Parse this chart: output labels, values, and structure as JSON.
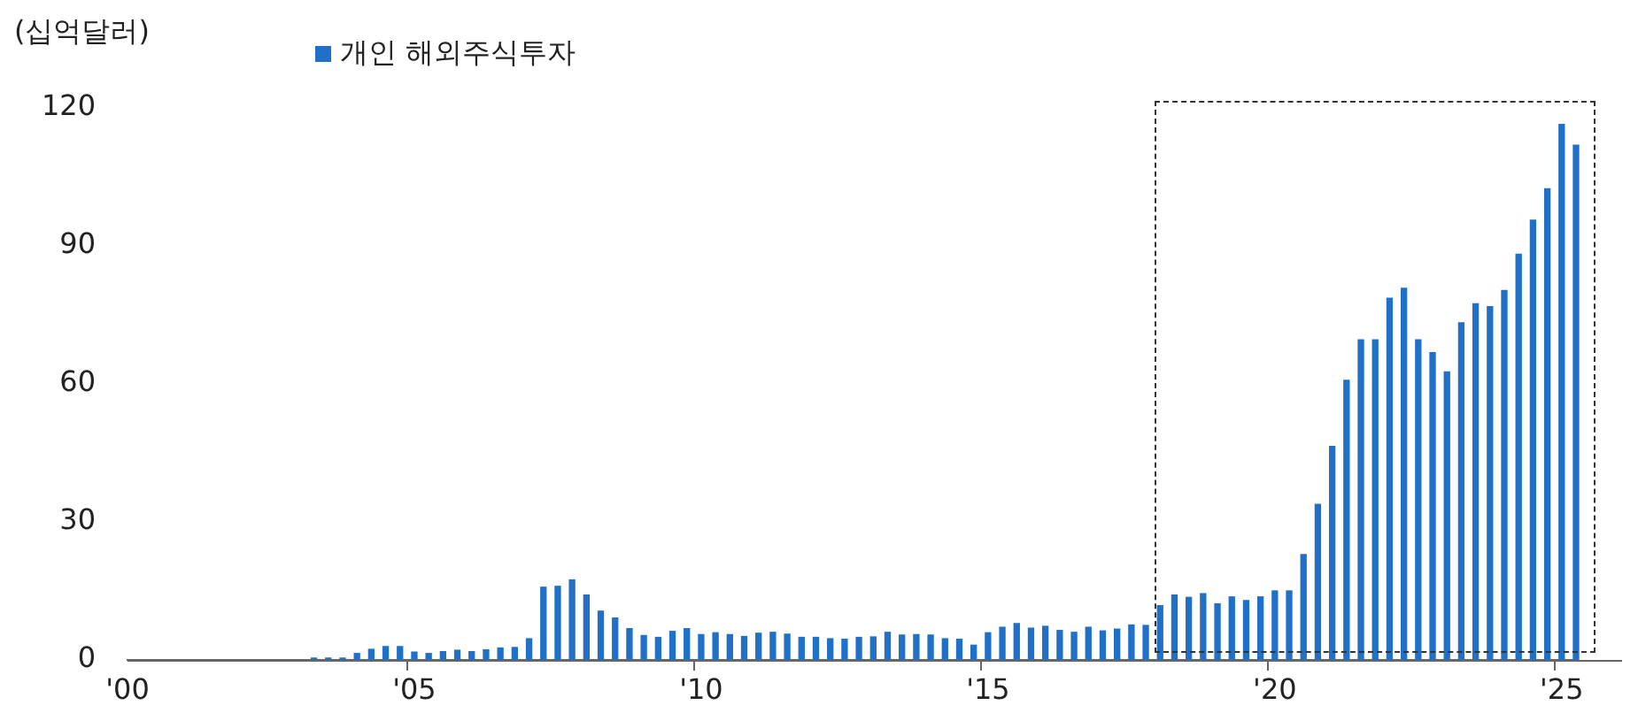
{
  "chart_data": {
    "type": "bar",
    "ylabel": "(십억달러)",
    "legend": "top left",
    "categories": [
      "'00",
      null,
      null,
      null,
      null,
      null,
      null,
      null,
      null,
      null,
      null,
      null,
      null,
      null,
      null,
      null,
      null,
      null,
      null,
      null,
      "'05",
      null,
      null,
      null,
      null,
      null,
      null,
      null,
      null,
      null,
      null,
      null,
      null,
      null,
      null,
      null,
      null,
      null,
      null,
      null,
      "'10",
      null,
      null,
      null,
      null,
      null,
      null,
      null,
      null,
      null,
      null,
      null,
      null,
      null,
      null,
      null,
      null,
      null,
      null,
      null,
      "'15",
      null,
      null,
      null,
      null,
      null,
      null,
      null,
      null,
      null,
      null,
      null,
      null,
      null,
      null,
      null,
      null,
      null,
      null,
      null,
      "'20",
      null,
      null,
      null,
      null,
      null,
      null,
      null,
      null,
      null,
      null,
      null,
      null,
      null,
      null,
      null,
      null,
      null,
      null,
      null,
      "'25",
      null
    ],
    "series": [
      {
        "name": "개인 해외주식투자",
        "color": "#1f70c6",
        "values": [
          null,
          null,
          null,
          null,
          null,
          null,
          null,
          null,
          null,
          null,
          null,
          null,
          null,
          0.4,
          0.4,
          0.4,
          1.4,
          2.3,
          2.9,
          2.9,
          1.7,
          1.4,
          1.8,
          2.1,
          1.8,
          2.2,
          2.6,
          2.7,
          4.6,
          15.8,
          16.0,
          17.4,
          14.1,
          10.6,
          9.1,
          6.8,
          5.3,
          4.9,
          6.2,
          6.8,
          5.5,
          5.9,
          5.5,
          5.1,
          5.8,
          6.0,
          5.6,
          4.9,
          4.9,
          4.6,
          4.5,
          4.9,
          5.0,
          6.0,
          5.4,
          5.5,
          5.4,
          4.6,
          4.5,
          3.2,
          5.9,
          7.1,
          7.9,
          6.9,
          7.3,
          6.4,
          6.0,
          7.1,
          6.3,
          6.7,
          7.6,
          7.5,
          11.8,
          14.1,
          13.6,
          14.4,
          12.2,
          13.7,
          12.9,
          13.7,
          15.0,
          15.0,
          22.9,
          33.8,
          46.4,
          60.8,
          69.6,
          69.6,
          78.6,
          80.8,
          69.6,
          66.8,
          62.6,
          73.3,
          77.4,
          76.8,
          80.3,
          88.2,
          95.6,
          102.4,
          116.4,
          111.9
        ]
      }
    ],
    "ylim": [
      0,
      120
    ],
    "yticks": [
      0,
      30,
      60,
      90,
      120
    ],
    "grid": false
  }
}
